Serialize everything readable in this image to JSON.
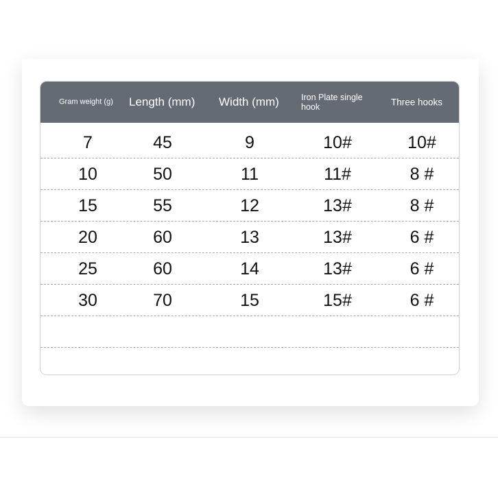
{
  "table": {
    "headers": [
      "Gram weight (g)",
      "Length (mm)",
      "Width (mm)",
      "Iron Plate single hook",
      "Three hooks"
    ],
    "rows": [
      [
        "7",
        "45",
        "9",
        "10#",
        "10#"
      ],
      [
        "10",
        "50",
        "11",
        "11#",
        "8 #"
      ],
      [
        "15",
        "55",
        "12",
        "13#",
        "8 #"
      ],
      [
        "20",
        "60",
        "13",
        "13#",
        "6 #"
      ],
      [
        "25",
        "60",
        "14",
        "13#",
        "6 #"
      ],
      [
        "30",
        "70",
        "15",
        "15#",
        "6 #"
      ]
    ]
  },
  "colors": {
    "header_bg": "#646b73",
    "header_text": "#ffffff"
  }
}
